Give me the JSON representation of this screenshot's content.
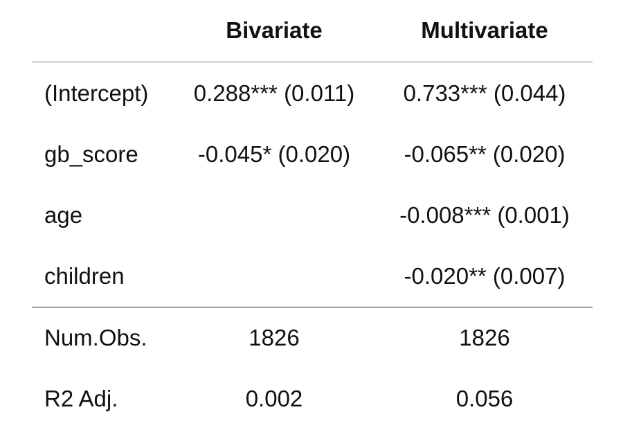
{
  "table": {
    "headers": [
      "",
      "Bivariate",
      "Multivariate"
    ],
    "coef_rows": [
      {
        "label": "(Intercept)",
        "bivariate": "0.288*** (0.011)",
        "multivariate": "0.733*** (0.044)"
      },
      {
        "label": "gb_score",
        "bivariate": "-0.045* (0.020)",
        "multivariate": "-0.065** (0.020)"
      },
      {
        "label": "age",
        "bivariate": "",
        "multivariate": "-0.008*** (0.001)"
      },
      {
        "label": "children",
        "bivariate": "",
        "multivariate": "-0.020** (0.007)"
      }
    ],
    "stat_rows": [
      {
        "label": "Num.Obs.",
        "bivariate": "1826",
        "multivariate": "1826"
      },
      {
        "label": "R2 Adj.",
        "bivariate": "0.002",
        "multivariate": "0.056"
      }
    ]
  }
}
